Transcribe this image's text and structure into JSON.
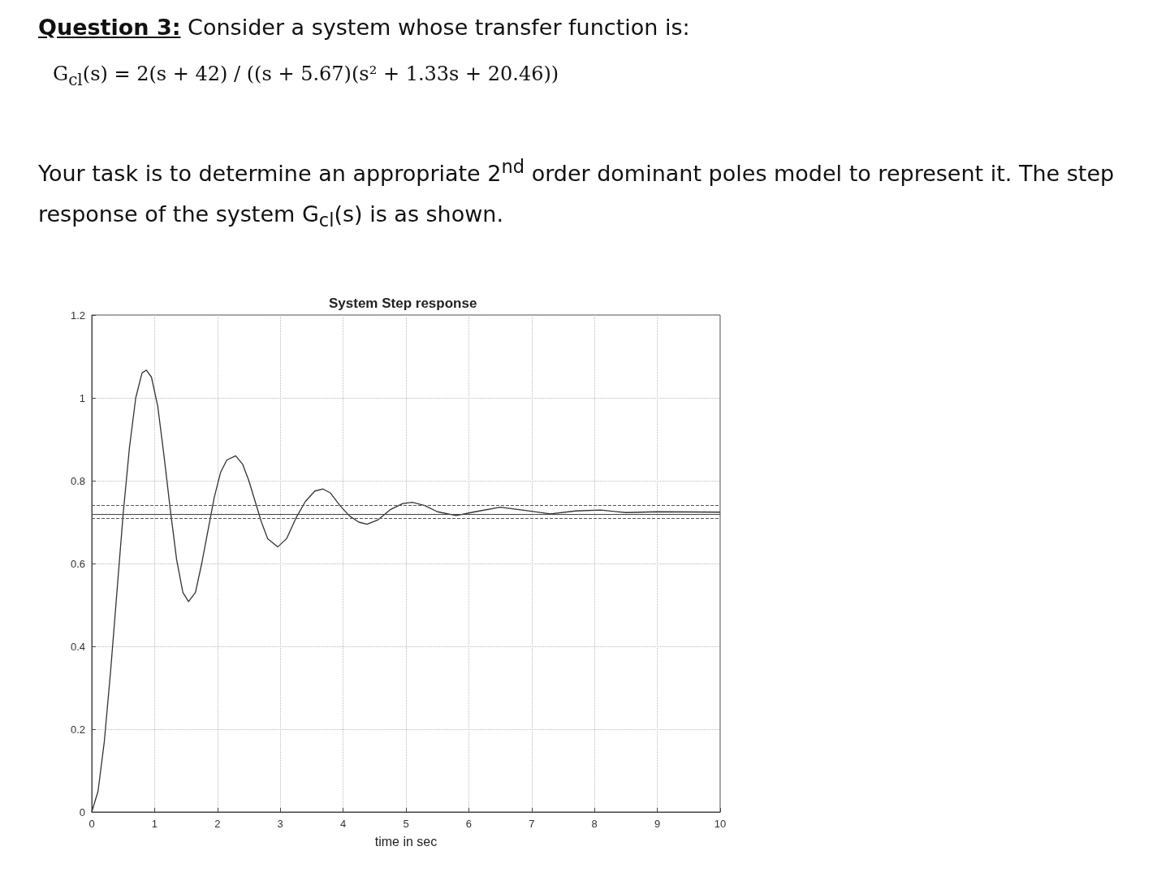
{
  "chart_data": {
    "type": "line",
    "title": "System Step response",
    "xlabel": "time in sec",
    "annotations": [
      "Question 3:",
      "Consider a system whose transfer function is:",
      "G$_{cl}$(s) = 2(s + 42) / ((s + 5.67)(s² + 1.33s + 20.46))",
      "Your task is to determine an appropriate 2$^{nd}$ order dominant poles model to represent it. The step response of the system G$_{cl}$(s) is as shown."
    ],
    "x": [
      0,
      0.1,
      0.2,
      0.3,
      0.4,
      0.5,
      0.6,
      0.7,
      0.8,
      0.87,
      0.95,
      1.05,
      1.15,
      1.25,
      1.35,
      1.45,
      1.54,
      1.65,
      1.75,
      1.85,
      1.95,
      2.05,
      2.15,
      2.29,
      2.4,
      2.5,
      2.6,
      2.7,
      2.8,
      2.96,
      3.1,
      3.25,
      3.4,
      3.55,
      3.68,
      3.8,
      3.95,
      4.1,
      4.25,
      4.38,
      4.55,
      4.75,
      4.95,
      5.1,
      5.3,
      5.5,
      5.8,
      6.1,
      6.5,
      6.9,
      7.3,
      7.7,
      8.1,
      8.5,
      9,
      10
    ],
    "series": [
      {
        "color": "#333333",
        "values": [
          0,
          0.05,
          0.17,
          0.34,
          0.53,
          0.72,
          0.88,
          1.0,
          1.06,
          1.067,
          1.05,
          0.98,
          0.86,
          0.73,
          0.61,
          0.53,
          0.508,
          0.53,
          0.6,
          0.68,
          0.76,
          0.82,
          0.85,
          0.86,
          0.84,
          0.8,
          0.75,
          0.7,
          0.66,
          0.64,
          0.66,
          0.71,
          0.75,
          0.775,
          0.78,
          0.77,
          0.74,
          0.715,
          0.7,
          0.695,
          0.705,
          0.73,
          0.745,
          0.748,
          0.74,
          0.725,
          0.716,
          0.725,
          0.736,
          0.728,
          0.72,
          0.727,
          0.729,
          0.723,
          0.725,
          0.724
        ]
      }
    ],
    "ref_lines": [
      {
        "axis": "y",
        "value": 0.738,
        "color": "#555555",
        "line_style": "dashed"
      },
      {
        "axis": "y",
        "value": 0.724,
        "color": "#444444",
        "line_style": "solid"
      },
      {
        "axis": "y",
        "value": 0.71,
        "color": "#555555",
        "line_style": "dashed"
      }
    ],
    "xlim": [
      0,
      10
    ],
    "xticks": [
      0,
      1,
      2,
      3,
      4,
      5,
      6,
      7,
      8,
      9,
      10
    ],
    "ylim": [
      0,
      1.2
    ],
    "yticks": [
      0,
      0.2,
      0.4,
      0.6,
      0.8,
      1,
      1.2
    ],
    "grid": true,
    "marker": "none",
    "line_style": "solid"
  }
}
